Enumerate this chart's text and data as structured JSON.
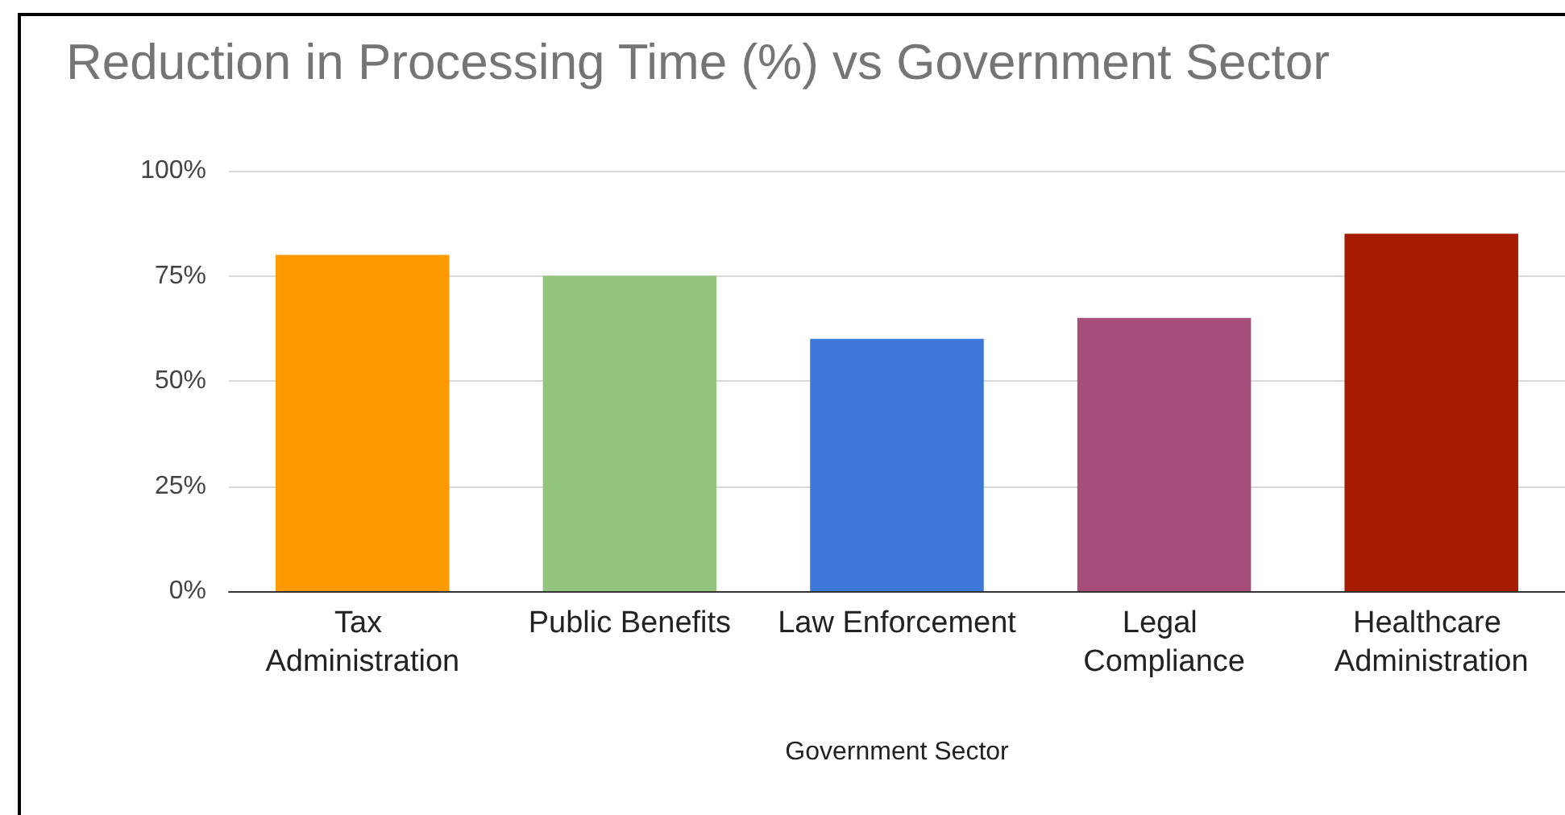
{
  "chart_data": {
    "type": "bar",
    "title": "Reduction in Processing Time (%) vs Government Sector",
    "xlabel": "Government Sector",
    "categories": [
      "Tax Administration",
      "Public Benefits",
      "Law Enforcement",
      "Legal Compliance",
      "Healthcare Administration"
    ],
    "values": [
      80,
      75,
      60,
      65,
      85
    ],
    "colors": [
      "#ff9900",
      "#93c47d",
      "#3c78d8",
      "#a64d79",
      "#a61c00"
    ],
    "ylim": [
      0,
      100
    ],
    "yticks": [
      {
        "value": 0,
        "label": "0%"
      },
      {
        "value": 25,
        "label": "25%"
      },
      {
        "value": 50,
        "label": "50%"
      },
      {
        "value": 75,
        "label": "75%"
      },
      {
        "value": 100,
        "label": "100%"
      }
    ],
    "grid": "y"
  }
}
